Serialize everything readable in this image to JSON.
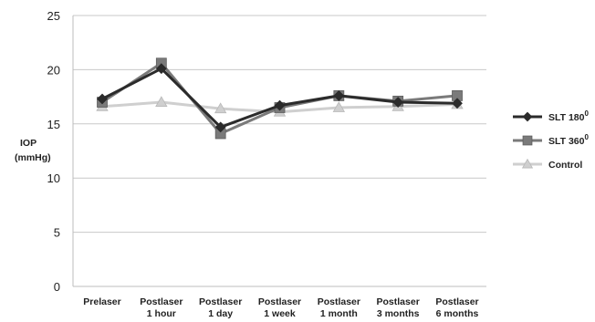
{
  "chart_data": {
    "type": "line",
    "title": "",
    "ylabel": [
      "IOP",
      "(mmHg)"
    ],
    "xlabel": "",
    "ylim": [
      0,
      25
    ],
    "yticks": [
      0,
      5,
      10,
      15,
      20,
      25
    ],
    "grid": true,
    "legend_position": "right",
    "categories": [
      [
        "Prelaser"
      ],
      [
        "Postlaser",
        "1 hour"
      ],
      [
        "Postlaser",
        "1 day"
      ],
      [
        "Postlaser",
        "1 week"
      ],
      [
        "Postlaser",
        "1 month"
      ],
      [
        "Postlaser",
        "3 months"
      ],
      [
        "Postlaser",
        "6 months"
      ]
    ],
    "series": [
      {
        "name": "SLT 180",
        "name_superscript": "0",
        "marker": "diamond",
        "color": "#2b2b2b",
        "values": [
          17.3,
          20.1,
          14.7,
          16.7,
          17.6,
          17.0,
          16.9
        ]
      },
      {
        "name": "SLT 360",
        "name_superscript": "0",
        "marker": "square",
        "color": "#7a7a7a",
        "values": [
          17.0,
          20.6,
          14.1,
          16.5,
          17.6,
          17.1,
          17.6
        ]
      },
      {
        "name": "Control",
        "name_superscript": "",
        "marker": "triangle",
        "color": "#cfcfcf",
        "values": [
          16.6,
          17.0,
          16.4,
          16.1,
          16.5,
          16.6,
          16.8
        ]
      }
    ]
  }
}
